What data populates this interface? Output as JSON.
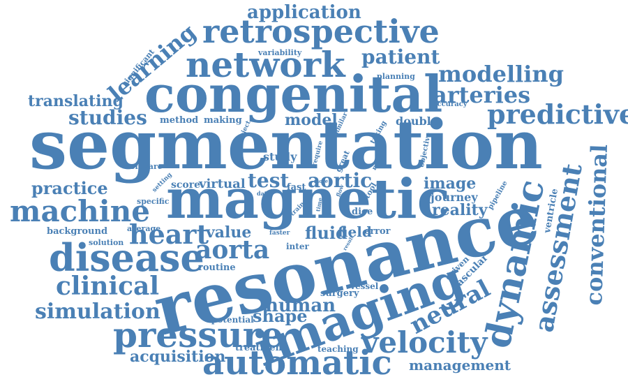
{
  "palette": {
    "word_color": "#4a80b5",
    "background": "#ffffff"
  },
  "words": {
    "segmentation": "segmentation",
    "resonance": "resonance",
    "magnetic": "magnetic",
    "congenital": "congenital",
    "imaging": "imaging",
    "automatic": "automatic",
    "network": "network",
    "retrospective": "retrospective",
    "disease": "disease",
    "machine": "machine",
    "pressure": "pressure",
    "dynamic": "dynamic",
    "velocity": "velocity",
    "predictive": "predictive",
    "clinical": "clinical",
    "simulation": "simulation",
    "assessment": "assessment",
    "conventional": "conventional",
    "modelling": "modelling",
    "arteries": "arteries",
    "patient": "patient",
    "application": "application",
    "learning": "learning",
    "studies": "studies",
    "heart": "heart",
    "aorta": "aorta",
    "neural": "neural",
    "practice": "practice",
    "translating": "translating",
    "human": "human",
    "shape": "shape",
    "acquisition": "acquisition",
    "management": "management",
    "test": "test",
    "aortic": "aortic",
    "image": "image",
    "reality": "reality",
    "value": "value",
    "fluid": "fluid",
    "field": "field",
    "model": "model",
    "study": "study",
    "journey": "journey",
    "method": "method",
    "making": "making",
    "double": "double",
    "score": "score",
    "virtual": "virtual",
    "fast": "fast",
    "error": "error",
    "routine": "routine",
    "surgery": "surgery",
    "vascular": "vascular",
    "driven": "driven",
    "ventricle": "ventricle",
    "potential": "potential",
    "treatment": "treatment",
    "teaching": "teaching",
    "vessel": "vessel",
    "software": "software",
    "specific": "specific",
    "background": "background",
    "average": "average",
    "solution": "solution",
    "inter": "inter",
    "dice": "dice",
    "tool": "tool",
    "great": "great",
    "require": "require",
    "objective": "objective",
    "maps": "maps",
    "taking": "taking",
    "similar": "similar",
    "project": "project",
    "accuracy": "accuracy",
    "planning": "planning",
    "variability": "variability",
    "significant": "significant",
    "pipeline": "pipeline",
    "faster": "faster",
    "train": "train",
    "time": "time",
    "flow": "flow",
    "data": "data",
    "setting": "setting",
    "more": "more",
    "result": "result"
  }
}
